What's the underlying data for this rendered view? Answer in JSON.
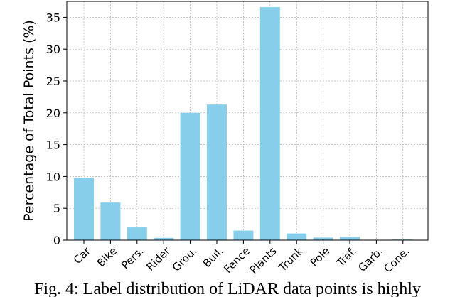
{
  "chart_data": {
    "type": "bar",
    "categories": [
      "Car",
      "Bike",
      "Pers.",
      "Rider",
      "Grou.",
      "Buil.",
      "Fence",
      "Plants",
      "Trunk",
      "Pole",
      "Traf.",
      "Garb.",
      "Cone."
    ],
    "values": [
      9.8,
      5.9,
      2.0,
      0.35,
      20.0,
      21.3,
      1.5,
      36.6,
      1.05,
      0.4,
      0.5,
      0.05,
      0.1
    ],
    "title": "",
    "xlabel": "",
    "ylabel": "Percentage of Total Points (%)",
    "ylim": [
      0,
      37.5
    ],
    "yticks": [
      0,
      5,
      10,
      15,
      20,
      25,
      30,
      35
    ],
    "grid": true,
    "bar_color": "#87ceeb"
  },
  "caption": "Fig. 4: Label distribution of LiDAR data points is highly"
}
